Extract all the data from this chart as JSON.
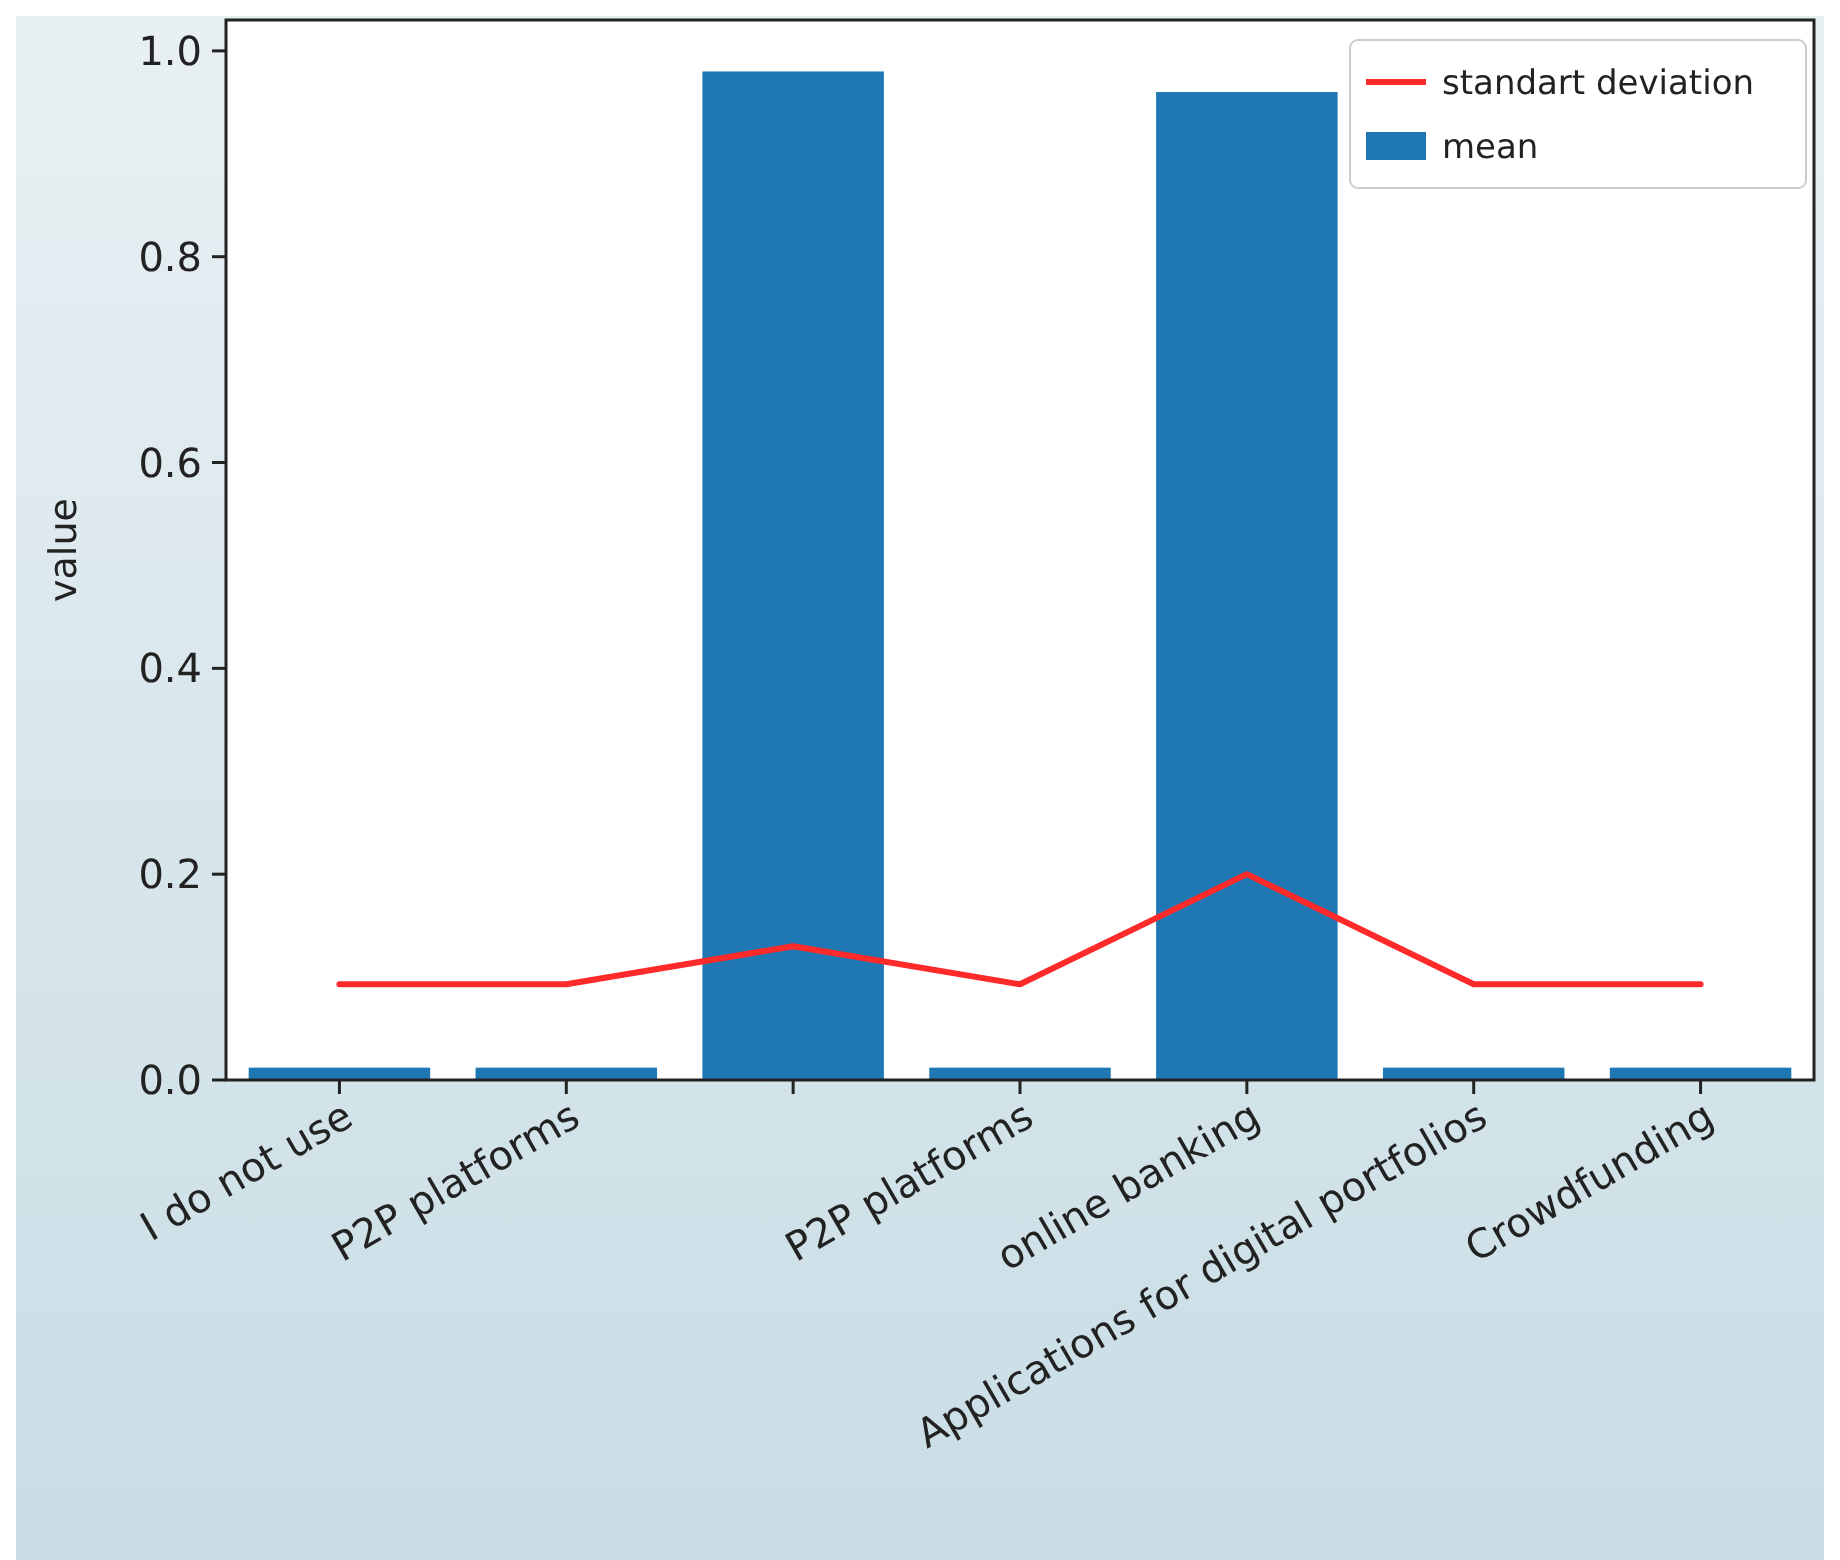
{
  "chart_data": {
    "type": "bar",
    "ylabel": "value",
    "categories": [
      "I do not use",
      "P2P platforms",
      null,
      "P2P platforms",
      "online banking",
      "Applications for digital portfolios",
      "Crowdfunding"
    ],
    "series": [
      {
        "name": "standart deviation",
        "type": "line",
        "color": "#ff2a2a",
        "values": [
          0.093,
          0.093,
          0.13,
          0.093,
          0.2,
          0.093,
          0.093
        ]
      },
      {
        "name": "mean",
        "color": "#1f77b4",
        "values": [
          0.012,
          0.012,
          0.98,
          0.012,
          0.96,
          0.012,
          0.012
        ]
      }
    ],
    "ylim": [
      0,
      1.03
    ],
    "yticks": [
      {
        "value": 0,
        "label": "0.0"
      },
      0.2,
      0.4,
      0.6,
      0.8,
      {
        "value": 1,
        "label": "1.0"
      }
    ],
    "grid": false,
    "legend": "top right"
  }
}
